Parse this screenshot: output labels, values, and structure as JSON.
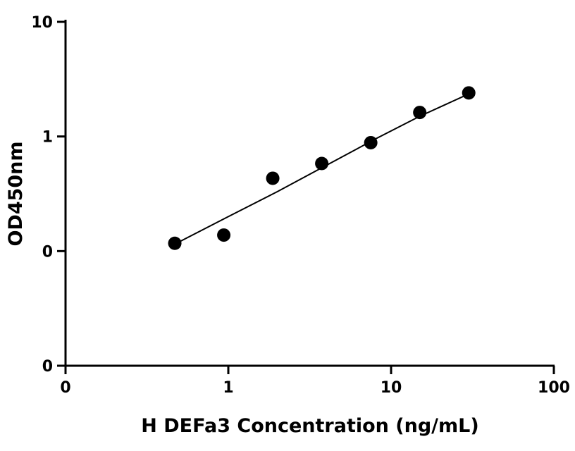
{
  "chart_data": {
    "type": "scatter",
    "xlabel": "H DEFa3 Concentration (ng/mL)",
    "ylabel": "OD450nm",
    "xscale": "log",
    "yscale": "log",
    "xlim": [
      0.1,
      100
    ],
    "ylim": [
      0.01,
      10
    ],
    "x_ticks": [
      0.1,
      1,
      10,
      100
    ],
    "x_tick_labels": [
      "0",
      "1",
      "10",
      "100"
    ],
    "y_ticks": [
      0.01,
      0.1,
      1,
      10
    ],
    "y_tick_labels": [
      "0",
      "0",
      "1",
      "10"
    ],
    "grid": false,
    "legend": "none",
    "marker_color": "#000000",
    "series": [
      {
        "x": [
          0.469,
          0.938,
          1.875,
          3.75,
          7.5,
          15,
          30
        ],
        "y": [
          0.117,
          0.138,
          0.432,
          0.581,
          0.883,
          1.62,
          2.4
        ]
      }
    ],
    "fit_line": {
      "x": [
        0.469,
        1,
        2,
        4,
        8,
        15,
        30
      ],
      "y": [
        0.115,
        0.2,
        0.33,
        0.56,
        0.95,
        1.5,
        2.35
      ]
    }
  }
}
